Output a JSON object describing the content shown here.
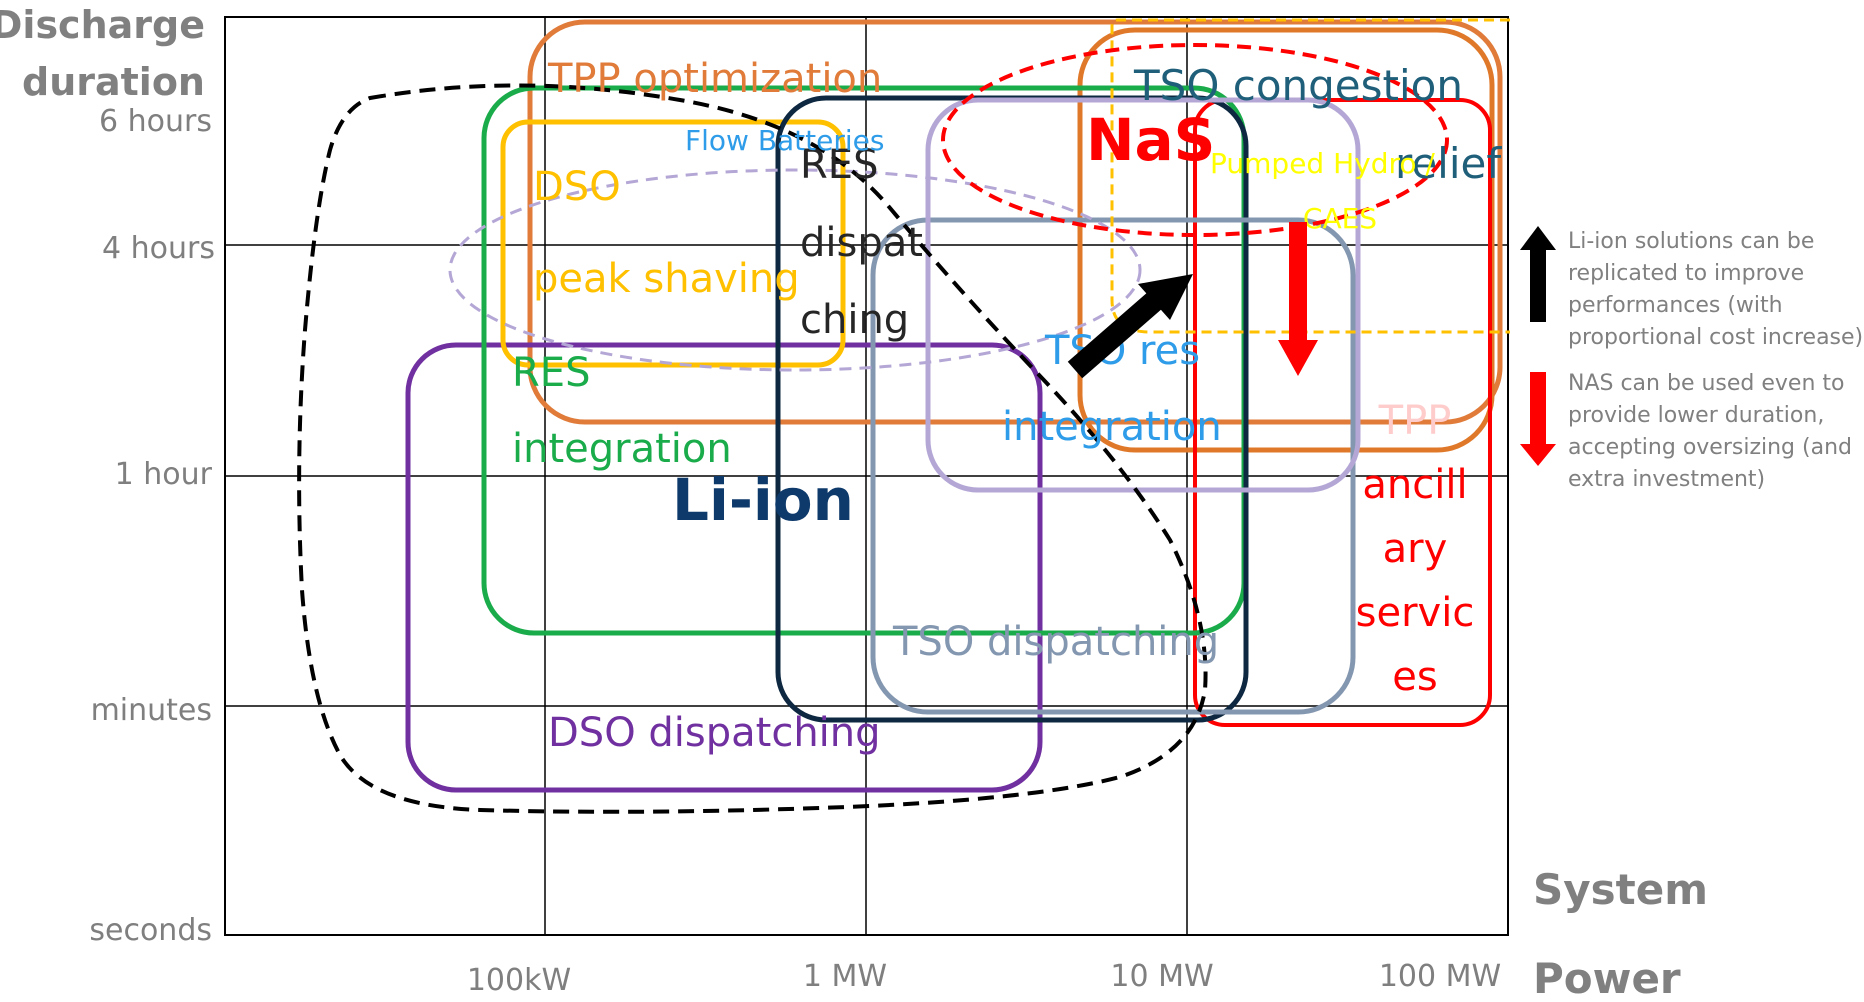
{
  "axes": {
    "y_title_line1": "Discharge",
    "y_title_line2": "duration",
    "x_title_line1": "System",
    "x_title_line2": "Power",
    "y_ticks": [
      "6 hours",
      "4 hours",
      "1 hour",
      "minutes",
      "seconds"
    ],
    "x_ticks": [
      "100kW",
      "1 MW",
      "10 MW",
      "100 MW"
    ]
  },
  "regions": {
    "tpp_optimization": "TPP optimization",
    "tso_congestion_line1": "TSO congestion",
    "tso_congestion_line2": "relief",
    "dso_peak_line1": "DSO",
    "dso_peak_line2": "peak shaving",
    "res_integration_line1": "RES",
    "res_integration_line2": "integration",
    "res_dispatching_line1": "RES",
    "res_dispatching_line2": "dispat",
    "res_dispatching_line3": "ching",
    "tso_res_line1": "TSO res",
    "tso_res_line2": "integration",
    "tso_dispatching": "TSO dispatching",
    "dso_dispatching": "DSO dispatching",
    "tpp_ancillary": [
      "TPP",
      "ancill",
      "ary",
      "servic",
      "es"
    ]
  },
  "technologies": {
    "li_ion": "Li-ion",
    "nas": "NaS",
    "flow_batteries": "Flow Batteries",
    "pumped_hydro": "Pumped Hydro /",
    "caes": "CAES"
  },
  "notes": {
    "black_arrow": [
      "Li-ion solutions can be",
      "replicated to improve",
      "performances (with",
      "proportional cost increase)"
    ],
    "red_arrow": [
      "NAS can be used even to",
      "provide lower duration,",
      "accepting oversizing (and",
      "extra investment)"
    ]
  },
  "colors": {
    "tpp_optimization": "#e07b39",
    "tso_congestion": "#e0782a",
    "dso_peak": "#ffc000",
    "res_integration": "#1aab4b",
    "res_dispatching": "#0e2841",
    "tso_res": "#b4a7d6",
    "tso_dispatching": "#8497b0",
    "dso_dispatching": "#7030a0",
    "tpp_ancillary": "#ff0000",
    "li_ion_text": "#0e3a6b",
    "nas_text": "#ff0000",
    "flow_batteries_text": "#2e9ce8",
    "pumped_hydro_text": "#ffff00",
    "tso_res_text": "#2e9ce8"
  }
}
